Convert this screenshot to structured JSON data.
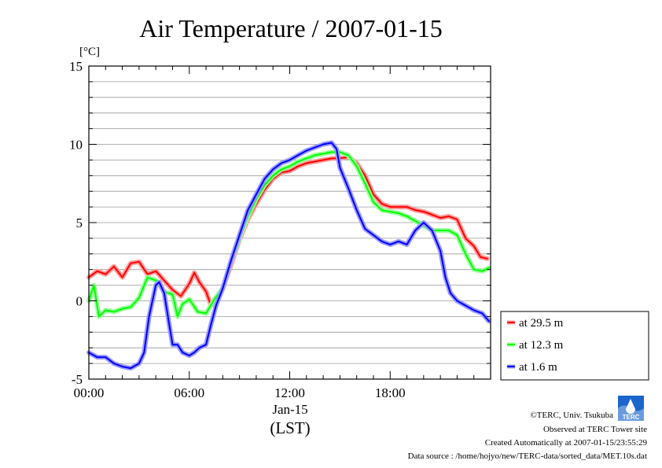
{
  "chart_data": {
    "type": "line",
    "title": "Air Temperature / 2007-01-15",
    "ylabel": "[°C]",
    "xlabel": "(LST)",
    "date_label": "Jan-15",
    "ylim": [
      -5,
      15
    ],
    "xlim": [
      0,
      24
    ],
    "yticks": [
      {
        "value": -5,
        "label": "-5"
      },
      {
        "value": 0,
        "label": "0"
      },
      {
        "value": 5,
        "label": "5"
      },
      {
        "value": 10,
        "label": "10"
      },
      {
        "value": 15,
        "label": "15"
      }
    ],
    "xticks": [
      {
        "value": 0,
        "label": "00:00"
      },
      {
        "value": 6,
        "label": "06:00"
      },
      {
        "value": 12,
        "label": "12:00"
      },
      {
        "value": 18,
        "label": "18:00"
      }
    ],
    "grid": true,
    "legend_position": "right",
    "series": [
      {
        "name": "at 29.5 m",
        "color": "#ff0000",
        "halo": "#ff9999",
        "points": [
          [
            0,
            1.5
          ],
          [
            0.5,
            1.9
          ],
          [
            1,
            1.7
          ],
          [
            1.5,
            2.2
          ],
          [
            2,
            1.5
          ],
          [
            2.5,
            2.4
          ],
          [
            3,
            2.5
          ],
          [
            3.5,
            1.7
          ],
          [
            4,
            1.9
          ],
          [
            4.5,
            1.3
          ],
          [
            5,
            0.7
          ],
          [
            5.5,
            0.3
          ],
          [
            6,
            1.1
          ],
          [
            6.3,
            1.8
          ],
          [
            6.6,
            1.2
          ],
          [
            7,
            0.6
          ],
          [
            7.3,
            -0.3
          ],
          [
            7.6,
            0.2
          ],
          [
            8,
            0.8
          ],
          [
            8.5,
            2.3
          ],
          [
            9,
            3.9
          ],
          [
            9.5,
            5.2
          ],
          [
            10,
            6.2
          ],
          [
            10.5,
            7.1
          ],
          [
            11,
            7.8
          ],
          [
            11.5,
            8.2
          ],
          [
            12,
            8.3
          ],
          [
            12.5,
            8.6
          ],
          [
            13,
            8.8
          ],
          [
            13.5,
            8.9
          ],
          [
            14,
            9
          ],
          [
            14.5,
            9.1
          ],
          [
            15,
            9.1
          ],
          [
            15.5,
            9.2
          ],
          [
            16,
            8.8
          ],
          [
            16.5,
            8
          ],
          [
            17,
            6.8
          ],
          [
            17.5,
            6.2
          ],
          [
            18,
            6
          ],
          [
            18.5,
            6
          ],
          [
            19,
            6
          ],
          [
            19.5,
            5.8
          ],
          [
            20,
            5.7
          ],
          [
            20.5,
            5.5
          ],
          [
            21,
            5.3
          ],
          [
            21.5,
            5.4
          ],
          [
            22,
            5.2
          ],
          [
            22.5,
            4
          ],
          [
            23,
            3.5
          ],
          [
            23.4,
            2.8
          ],
          [
            23.8,
            2.7
          ]
        ]
      },
      {
        "name": "at 12.3 m",
        "color": "#00ff00",
        "halo": "#99ff99",
        "points": [
          [
            0,
            0
          ],
          [
            0.3,
            1
          ],
          [
            0.6,
            -1
          ],
          [
            1,
            -0.6
          ],
          [
            1.5,
            -0.7
          ],
          [
            2,
            -0.5
          ],
          [
            2.5,
            -0.4
          ],
          [
            3,
            0.2
          ],
          [
            3.5,
            1.5
          ],
          [
            4,
            1.3
          ],
          [
            4.5,
            0.6
          ],
          [
            5,
            0.4
          ],
          [
            5.3,
            -1
          ],
          [
            5.6,
            -0.2
          ],
          [
            6,
            0.1
          ],
          [
            6.5,
            -0.7
          ],
          [
            7,
            -0.8
          ],
          [
            7.5,
            0.1
          ],
          [
            8,
            0.8
          ],
          [
            8.5,
            2.5
          ],
          [
            9,
            4
          ],
          [
            9.5,
            5.4
          ],
          [
            10,
            6.5
          ],
          [
            10.5,
            7.4
          ],
          [
            11,
            8
          ],
          [
            11.5,
            8.4
          ],
          [
            12,
            8.6
          ],
          [
            12.5,
            8.9
          ],
          [
            13,
            9.1
          ],
          [
            13.5,
            9.3
          ],
          [
            14,
            9.4
          ],
          [
            14.5,
            9.5
          ],
          [
            15,
            9.5
          ],
          [
            15.5,
            9.3
          ],
          [
            16,
            8.6
          ],
          [
            16.5,
            7.5
          ],
          [
            17,
            6.3
          ],
          [
            17.5,
            5.8
          ],
          [
            18,
            5.7
          ],
          [
            18.5,
            5.6
          ],
          [
            19,
            5.4
          ],
          [
            19.5,
            5.1
          ],
          [
            20,
            4.8
          ],
          [
            20.5,
            4.5
          ],
          [
            21,
            4.5
          ],
          [
            21.5,
            4.5
          ],
          [
            22,
            4.2
          ],
          [
            22.5,
            3
          ],
          [
            23,
            2
          ],
          [
            23.5,
            1.9
          ],
          [
            23.9,
            2.1
          ]
        ]
      },
      {
        "name": "at 1.6 m",
        "color": "#0000ff",
        "halo": "#9999ff",
        "points": [
          [
            0,
            -3.3
          ],
          [
            0.5,
            -3.6
          ],
          [
            1,
            -3.6
          ],
          [
            1.5,
            -4
          ],
          [
            2,
            -4.2
          ],
          [
            2.5,
            -4.3
          ],
          [
            3,
            -4
          ],
          [
            3.3,
            -3.3
          ],
          [
            3.6,
            -1
          ],
          [
            4,
            1
          ],
          [
            4.2,
            1.2
          ],
          [
            4.5,
            0.5
          ],
          [
            4.8,
            -1.5
          ],
          [
            5,
            -2.8
          ],
          [
            5.3,
            -2.8
          ],
          [
            5.6,
            -3.3
          ],
          [
            6,
            -3.5
          ],
          [
            6.3,
            -3.3
          ],
          [
            6.6,
            -3
          ],
          [
            7,
            -2.8
          ],
          [
            7.3,
            -1.5
          ],
          [
            7.6,
            -0.3
          ],
          [
            8,
            0.8
          ],
          [
            8.5,
            2.6
          ],
          [
            9,
            4.2
          ],
          [
            9.5,
            5.8
          ],
          [
            10,
            6.8
          ],
          [
            10.5,
            7.8
          ],
          [
            11,
            8.4
          ],
          [
            11.5,
            8.8
          ],
          [
            12,
            9
          ],
          [
            12.5,
            9.3
          ],
          [
            13,
            9.6
          ],
          [
            13.5,
            9.8
          ],
          [
            14,
            10
          ],
          [
            14.5,
            10.1
          ],
          [
            14.8,
            9.7
          ],
          [
            15,
            8.5
          ],
          [
            15.5,
            7.2
          ],
          [
            16,
            5.8
          ],
          [
            16.5,
            4.6
          ],
          [
            17,
            4.2
          ],
          [
            17.5,
            3.8
          ],
          [
            18,
            3.6
          ],
          [
            18.5,
            3.8
          ],
          [
            19,
            3.6
          ],
          [
            19.5,
            4.5
          ],
          [
            20,
            5
          ],
          [
            20.5,
            4.5
          ],
          [
            21,
            3.2
          ],
          [
            21.3,
            1.5
          ],
          [
            21.6,
            0.5
          ],
          [
            22,
            0
          ],
          [
            22.5,
            -0.3
          ],
          [
            23,
            -0.6
          ],
          [
            23.5,
            -0.8
          ],
          [
            23.9,
            -1.3
          ]
        ]
      }
    ]
  },
  "footer": {
    "copyright": "©TERC, Univ. Tsukuba",
    "observed": "Observed at TERC Tower site",
    "created": "Created Automatically at 2007-01-15/23:55:29",
    "source": "Data source : /home/hojyo/new/TERC-data/sorted_data/MET.10s.dat"
  },
  "logo": {
    "text": "TERC"
  }
}
